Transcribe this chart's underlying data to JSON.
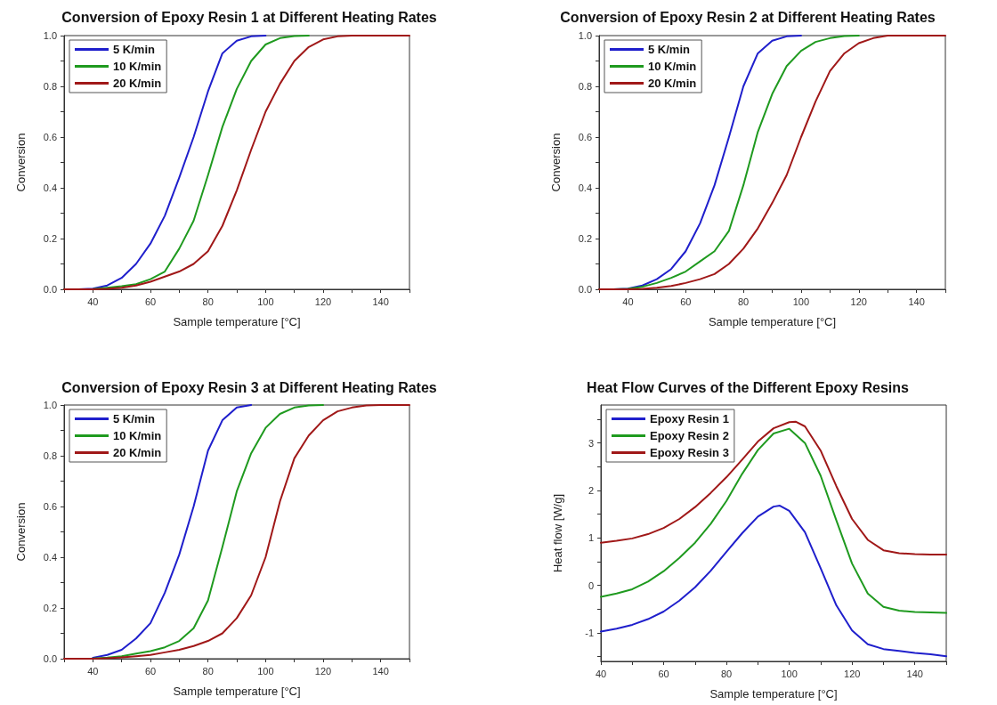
{
  "chart_data": [
    {
      "type": "line",
      "title": "Conversion of Epoxy Resin 1 at Different Heating Rates",
      "xlabel": "Sample temperature [°C]",
      "ylabel": "Conversion",
      "legend": "top left",
      "xlim": [
        30,
        150
      ],
      "ylim": [
        0,
        1
      ],
      "xticks": [
        {
          "value": 30,
          "label": null
        },
        40,
        {
          "value": 50,
          "label": null
        },
        60,
        {
          "value": 70,
          "label": null
        },
        80,
        {
          "value": 90,
          "label": null
        },
        100,
        {
          "value": 110,
          "label": null
        },
        120,
        {
          "value": 130,
          "label": null
        },
        140,
        {
          "value": 150,
          "label": null
        }
      ],
      "yticks": [
        {
          "value": 0,
          "label": "0.0"
        },
        {
          "value": 0.1,
          "label": null
        },
        0.2,
        {
          "value": 0.3,
          "label": null
        },
        0.4,
        {
          "value": 0.5,
          "label": null
        },
        0.6,
        {
          "value": 0.7,
          "label": null
        },
        0.8,
        {
          "value": 0.9,
          "label": null
        },
        {
          "value": 1,
          "label": "1.0"
        }
      ],
      "series": [
        {
          "name": "5 K/min",
          "color": "#1f1fcc",
          "x": [
            30,
            35,
            40,
            45,
            50,
            55,
            60,
            65,
            70,
            75,
            80,
            85,
            90,
            95,
            100
          ],
          "values": [
            0,
            0,
            0.003,
            0.015,
            0.045,
            0.1,
            0.18,
            0.29,
            0.44,
            0.6,
            0.78,
            0.93,
            0.98,
            0.997,
            1
          ]
        },
        {
          "name": "10 K/min",
          "color": "#1f9a1f",
          "x": [
            30,
            35,
            40,
            45,
            50,
            55,
            60,
            65,
            70,
            75,
            80,
            85,
            90,
            95,
            100,
            105,
            110,
            115
          ],
          "values": [
            0,
            0,
            0.001,
            0.006,
            0.012,
            0.02,
            0.04,
            0.07,
            0.16,
            0.27,
            0.45,
            0.64,
            0.79,
            0.9,
            0.965,
            0.99,
            0.998,
            1
          ]
        },
        {
          "name": "20 K/min",
          "color": "#a01818",
          "x": [
            30,
            35,
            40,
            45,
            50,
            55,
            60,
            65,
            70,
            75,
            80,
            85,
            90,
            95,
            100,
            105,
            110,
            115,
            120,
            125,
            130,
            135,
            140,
            145,
            150
          ],
          "values": [
            0,
            0,
            0,
            0.002,
            0.006,
            0.015,
            0.03,
            0.05,
            0.07,
            0.1,
            0.15,
            0.25,
            0.39,
            0.55,
            0.7,
            0.81,
            0.9,
            0.955,
            0.985,
            0.997,
            1,
            1,
            1,
            1,
            1
          ]
        }
      ]
    },
    {
      "type": "line",
      "title": "Conversion of Epoxy Resin 2 at Different Heating Rates",
      "xlabel": "Sample temperature [°C]",
      "ylabel": "Conversion",
      "legend": "top left",
      "xlim": [
        30,
        150
      ],
      "ylim": [
        0,
        1
      ],
      "xticks": [
        {
          "value": 30,
          "label": null
        },
        40,
        {
          "value": 50,
          "label": null
        },
        60,
        {
          "value": 70,
          "label": null
        },
        80,
        {
          "value": 90,
          "label": null
        },
        100,
        {
          "value": 110,
          "label": null
        },
        120,
        {
          "value": 130,
          "label": null
        },
        140,
        {
          "value": 150,
          "label": null
        }
      ],
      "yticks": [
        {
          "value": 0,
          "label": "0.0"
        },
        {
          "value": 0.1,
          "label": null
        },
        0.2,
        {
          "value": 0.3,
          "label": null
        },
        0.4,
        {
          "value": 0.5,
          "label": null
        },
        0.6,
        {
          "value": 0.7,
          "label": null
        },
        0.8,
        {
          "value": 0.9,
          "label": null
        },
        {
          "value": 1,
          "label": "1.0"
        }
      ],
      "series": [
        {
          "name": "5 K/min",
          "color": "#1f1fcc",
          "x": [
            30,
            35,
            40,
            45,
            50,
            55,
            60,
            65,
            70,
            75,
            80,
            85,
            90,
            95,
            100
          ],
          "values": [
            0,
            0,
            0.003,
            0.015,
            0.04,
            0.08,
            0.15,
            0.26,
            0.41,
            0.6,
            0.8,
            0.93,
            0.98,
            0.997,
            1
          ]
        },
        {
          "name": "10 K/min",
          "color": "#1f9a1f",
          "x": [
            30,
            35,
            40,
            45,
            50,
            55,
            60,
            65,
            70,
            75,
            80,
            85,
            90,
            95,
            100,
            105,
            110,
            115,
            120
          ],
          "values": [
            0,
            0,
            0.002,
            0.01,
            0.025,
            0.045,
            0.07,
            0.11,
            0.15,
            0.23,
            0.41,
            0.62,
            0.77,
            0.88,
            0.94,
            0.975,
            0.99,
            0.998,
            1
          ]
        },
        {
          "name": "20 K/min",
          "color": "#a01818",
          "x": [
            30,
            35,
            40,
            45,
            50,
            55,
            60,
            65,
            70,
            75,
            80,
            85,
            90,
            95,
            100,
            105,
            110,
            115,
            120,
            125,
            130,
            135,
            140,
            145,
            150
          ],
          "values": [
            0,
            0,
            0,
            0.002,
            0.006,
            0.013,
            0.025,
            0.04,
            0.06,
            0.1,
            0.16,
            0.24,
            0.34,
            0.45,
            0.6,
            0.74,
            0.86,
            0.93,
            0.97,
            0.99,
            1,
            1,
            1,
            1,
            1
          ]
        }
      ]
    },
    {
      "type": "line",
      "title": "Conversion of Epoxy Resin 3 at Different Heating Rates",
      "xlabel": "Sample temperature [°C]",
      "ylabel": "Conversion",
      "legend": "top left",
      "xlim": [
        30,
        150
      ],
      "ylim": [
        0,
        1
      ],
      "xticks": [
        {
          "value": 30,
          "label": null
        },
        40,
        {
          "value": 50,
          "label": null
        },
        60,
        {
          "value": 70,
          "label": null
        },
        80,
        {
          "value": 90,
          "label": null
        },
        100,
        {
          "value": 110,
          "label": null
        },
        120,
        {
          "value": 130,
          "label": null
        },
        140,
        {
          "value": 150,
          "label": null
        }
      ],
      "yticks": [
        {
          "value": 0,
          "label": "0.0"
        },
        {
          "value": 0.1,
          "label": null
        },
        0.2,
        {
          "value": 0.3,
          "label": null
        },
        0.4,
        {
          "value": 0.5,
          "label": null
        },
        0.6,
        {
          "value": 0.7,
          "label": null
        },
        0.8,
        {
          "value": 0.9,
          "label": null
        },
        {
          "value": 1,
          "label": "1.0"
        }
      ],
      "series": [
        {
          "name": "5 K/min",
          "color": "#1f1fcc",
          "x": [
            40,
            45,
            50,
            55,
            60,
            65,
            70,
            75,
            80,
            85,
            90,
            95
          ],
          "values": [
            0.004,
            0.015,
            0.035,
            0.08,
            0.14,
            0.26,
            0.41,
            0.6,
            0.82,
            0.94,
            0.99,
            1
          ]
        },
        {
          "name": "10 K/min",
          "color": "#1f9a1f",
          "x": [
            40,
            45,
            50,
            55,
            60,
            65,
            70,
            75,
            80,
            85,
            90,
            95,
            100,
            105,
            110,
            115,
            120
          ],
          "values": [
            0.001,
            0.004,
            0.01,
            0.02,
            0.03,
            0.045,
            0.07,
            0.12,
            0.23,
            0.44,
            0.66,
            0.81,
            0.91,
            0.965,
            0.99,
            0.998,
            1
          ]
        },
        {
          "name": "20 K/min",
          "color": "#a01818",
          "x": [
            30,
            35,
            40,
            45,
            50,
            55,
            60,
            65,
            70,
            75,
            80,
            85,
            90,
            95,
            100,
            105,
            110,
            115,
            120,
            125,
            130,
            135,
            140,
            145,
            150
          ],
          "values": [
            0,
            0,
            0,
            0.002,
            0.005,
            0.01,
            0.015,
            0.025,
            0.035,
            0.05,
            0.07,
            0.1,
            0.16,
            0.25,
            0.4,
            0.62,
            0.79,
            0.88,
            0.94,
            0.975,
            0.99,
            0.998,
            1,
            1,
            1
          ]
        }
      ]
    },
    {
      "type": "line",
      "title": "Heat Flow Curves of the Different Epoxy Resins",
      "xlabel": "Sample temperature [°C]",
      "ylabel": "Heat flow [W/g]",
      "legend": "top left",
      "xlim": [
        40,
        150
      ],
      "ylim": [
        -1.6,
        3.8
      ],
      "xticks": [
        40,
        {
          "value": 50,
          "label": null
        },
        60,
        {
          "value": 70,
          "label": null
        },
        80,
        {
          "value": 90,
          "label": null
        },
        100,
        {
          "value": 110,
          "label": null
        },
        120,
        {
          "value": 130,
          "label": null
        },
        140,
        {
          "value": 150,
          "label": null
        }
      ],
      "yticks": [
        {
          "value": -1.5,
          "label": null
        },
        {
          "value": -1,
          "label": "-1"
        },
        {
          "value": -0.5,
          "label": null
        },
        0,
        {
          "value": 0.5,
          "label": null
        },
        1,
        {
          "value": 1.5,
          "label": null
        },
        2,
        {
          "value": 2.5,
          "label": null
        },
        3,
        {
          "value": 3.5,
          "label": null
        }
      ],
      "series": [
        {
          "name": "Epoxy Resin 1",
          "color": "#1f1fcc",
          "x": [
            40,
            45,
            50,
            55,
            60,
            65,
            70,
            75,
            80,
            85,
            90,
            95,
            97,
            100,
            105,
            110,
            115,
            120,
            125,
            130,
            135,
            140,
            145,
            150
          ],
          "values": [
            -0.97,
            -0.91,
            -0.83,
            -0.71,
            -0.55,
            -0.32,
            -0.04,
            0.31,
            0.71,
            1.1,
            1.45,
            1.66,
            1.68,
            1.57,
            1.12,
            0.36,
            -0.42,
            -0.95,
            -1.24,
            -1.34,
            -1.38,
            -1.42,
            -1.45,
            -1.49
          ]
        },
        {
          "name": "Epoxy Resin 2",
          "color": "#1f9a1f",
          "x": [
            40,
            45,
            50,
            55,
            60,
            65,
            70,
            75,
            80,
            85,
            90,
            95,
            100,
            105,
            110,
            115,
            120,
            125,
            130,
            135,
            140,
            145,
            150
          ],
          "values": [
            -0.24,
            -0.17,
            -0.08,
            0.08,
            0.3,
            0.58,
            0.9,
            1.3,
            1.78,
            2.35,
            2.85,
            3.2,
            3.3,
            3.0,
            2.31,
            1.37,
            0.46,
            -0.17,
            -0.45,
            -0.53,
            -0.56,
            -0.57,
            -0.58
          ]
        },
        {
          "name": "Epoxy Resin 3",
          "color": "#a01818",
          "x": [
            40,
            45,
            50,
            55,
            60,
            65,
            70,
            75,
            80,
            85,
            90,
            95,
            100,
            102,
            105,
            110,
            115,
            120,
            125,
            130,
            135,
            140,
            145,
            150
          ],
          "values": [
            0.9,
            0.94,
            0.99,
            1.08,
            1.21,
            1.4,
            1.65,
            1.95,
            2.28,
            2.65,
            3.03,
            3.31,
            3.44,
            3.45,
            3.35,
            2.84,
            2.09,
            1.4,
            0.96,
            0.74,
            0.68,
            0.66,
            0.65,
            0.65
          ]
        }
      ]
    }
  ]
}
